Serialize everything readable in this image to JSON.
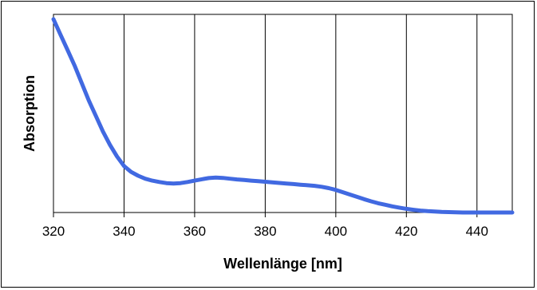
{
  "chart_data": {
    "type": "line",
    "title": "",
    "xlabel": "Wellenlänge [nm]",
    "ylabel": "Absorption",
    "xlim": [
      320,
      450
    ],
    "ylim": [
      0,
      1
    ],
    "x_ticks": [
      320,
      340,
      360,
      380,
      400,
      420,
      440
    ],
    "x_gridlines": [
      340,
      360,
      380,
      400,
      420,
      440
    ],
    "grid": "vertical",
    "legend": "none",
    "y_tick_labels_shown": false,
    "series": [
      {
        "color": "#4169e1",
        "x": [
          320,
          322,
          324,
          326,
          328,
          330,
          332,
          334,
          336,
          338,
          340,
          342,
          344,
          346,
          348,
          350,
          352,
          354,
          356,
          358,
          360,
          362,
          364,
          366,
          368,
          370,
          372,
          374,
          376,
          378,
          380,
          382,
          384,
          386,
          388,
          390,
          392,
          394,
          396,
          398,
          400,
          402,
          404,
          406,
          408,
          410,
          412,
          414,
          416,
          418,
          420,
          422,
          424,
          426,
          428,
          430,
          432,
          434,
          436,
          438,
          440,
          442,
          444,
          446,
          448,
          450
        ],
        "y": [
          1.0,
          0.92,
          0.84,
          0.76,
          0.67,
          0.58,
          0.5,
          0.42,
          0.35,
          0.29,
          0.24,
          0.21,
          0.19,
          0.175,
          0.165,
          0.158,
          0.152,
          0.15,
          0.152,
          0.158,
          0.165,
          0.172,
          0.178,
          0.181,
          0.179,
          0.175,
          0.171,
          0.168,
          0.165,
          0.162,
          0.159,
          0.156,
          0.153,
          0.15,
          0.147,
          0.144,
          0.141,
          0.138,
          0.133,
          0.126,
          0.117,
          0.105,
          0.093,
          0.081,
          0.069,
          0.058,
          0.048,
          0.04,
          0.032,
          0.025,
          0.019,
          0.014,
          0.01,
          0.007,
          0.005,
          0.003,
          0.002,
          0.001,
          0.0,
          0.0,
          0.0,
          0.0,
          0.0,
          0.0,
          0.0,
          0.0
        ]
      }
    ]
  }
}
